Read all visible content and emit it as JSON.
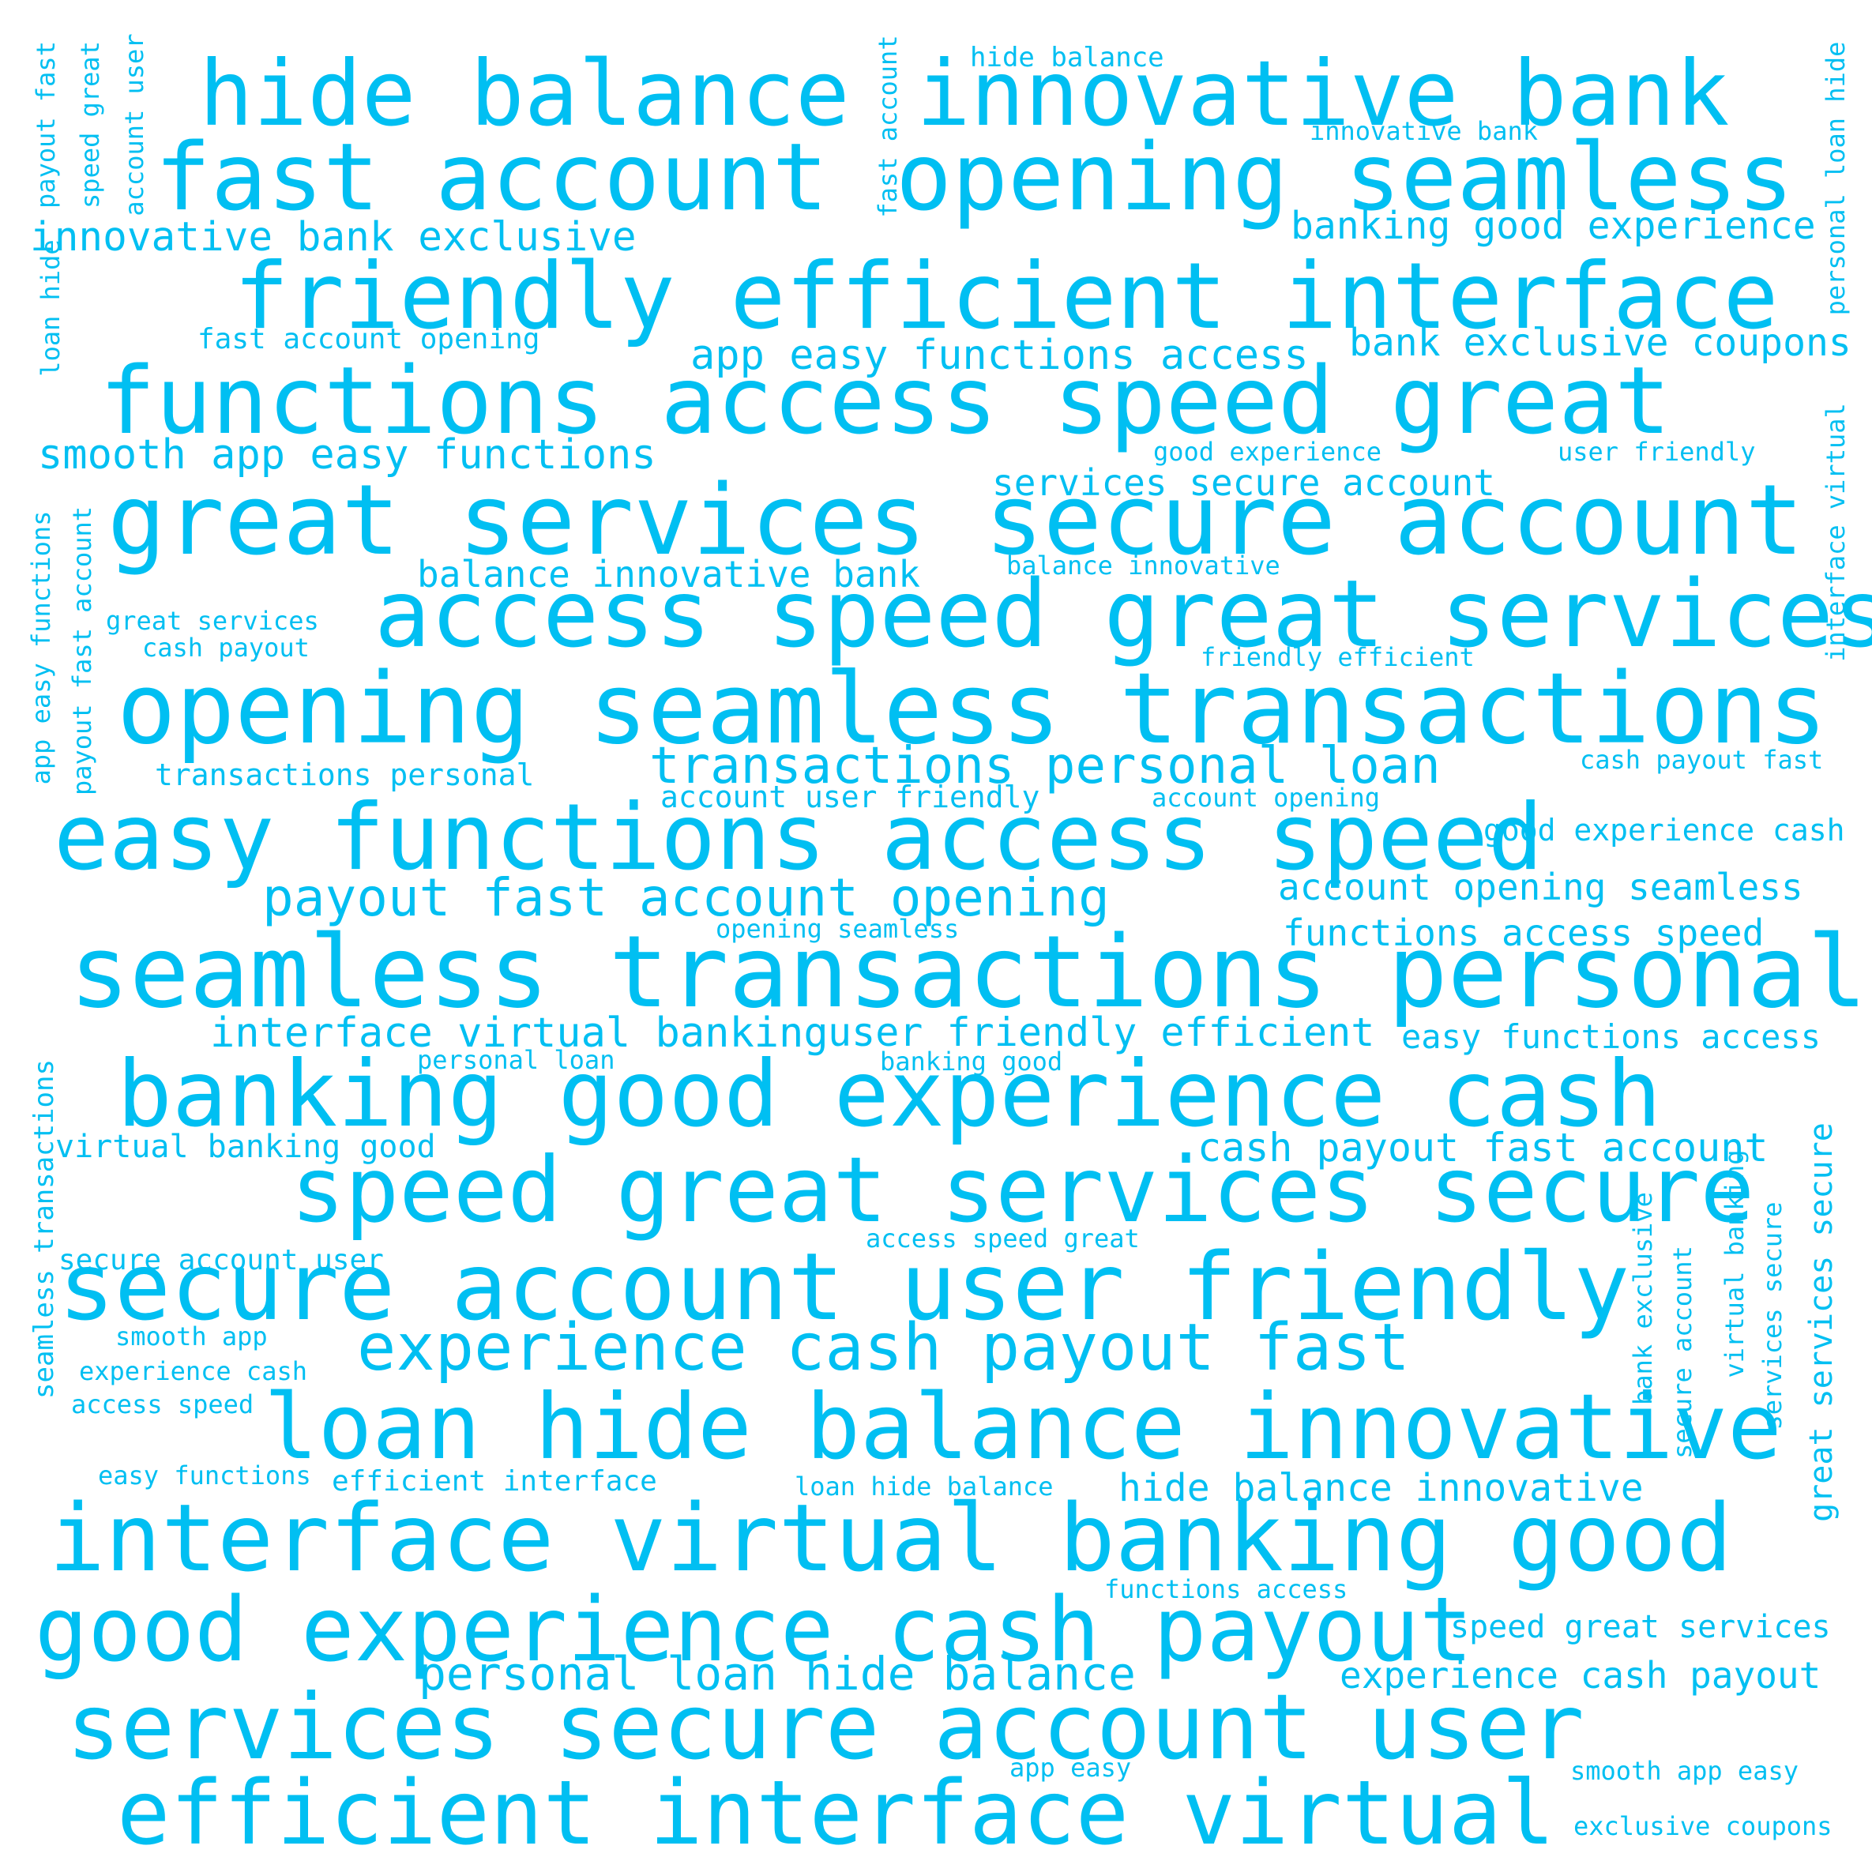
{
  "colors": {
    "text": "#00BFF2",
    "background": "#FFFFFF"
  },
  "words": [
    "hide balance",
    "innovative bank",
    "fast account",
    "opening seamless",
    "friendly efficient interface",
    "functions access speed great",
    "great services secure account",
    "access speed great services",
    "opening seamless transactions",
    "easy functions access speed",
    "seamless transactions personal",
    "banking good experience cash",
    "speed great services secure",
    "secure account user friendly",
    "loan hide balance innovative",
    "interface virtual banking good",
    "good experience cash payout",
    "services secure account user",
    "efficient interface virtual",
    "innovative bank exclusive",
    "banking good experience",
    "app easy functions access",
    "bank exclusive coupons",
    "smooth app easy functions",
    "services secure account",
    "balance innovative bank",
    "transactions personal loan",
    "payout fast account opening",
    "account opening seamless",
    "functions access speed",
    "interface virtual banking",
    "user friendly efficient",
    "easy functions access",
    "cash payout fast account",
    "experience cash payout fast",
    "hide balance innovative",
    "personal loan hide balance",
    "experience cash payout",
    "speed great services",
    "hide balance",
    "innovative bank",
    "fast account opening",
    "good experience",
    "user friendly",
    "balance innovative",
    "great services",
    "cash payout",
    "friendly efficient",
    "transactions personal",
    "cash payout fast",
    "account user friendly",
    "account opening",
    "good experience cash",
    "opening seamless",
    "personal loan",
    "banking good",
    "virtual banking good",
    "access speed great",
    "secure account user",
    "smooth app",
    "experience cash",
    "access speed",
    "easy functions",
    "efficient interface",
    "loan hide balance",
    "functions access",
    "app easy",
    "smooth app easy",
    "exclusive coupons",
    "payout fast",
    "speed great",
    "account user",
    "loan hide",
    "app easy functions",
    "payout fast account",
    "seamless transactions",
    "fast account",
    "personal loan hide",
    "interface virtual",
    "great services secure",
    "bank exclusive",
    "secure account",
    "virtual banking",
    "services secure"
  ]
}
